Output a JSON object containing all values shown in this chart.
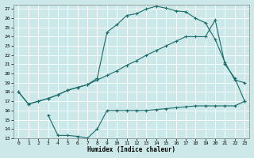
{
  "xlabel": "Humidex (Indice chaleur)",
  "bg_color": "#cde8e8",
  "line_color": "#1a6b6b",
  "grid_color": "#ffffff",
  "xlim": [
    -0.5,
    23.5
  ],
  "ylim": [
    13,
    27.5
  ],
  "yticks": [
    13,
    14,
    15,
    16,
    17,
    18,
    19,
    20,
    21,
    22,
    23,
    24,
    25,
    26,
    27
  ],
  "xticks": [
    0,
    1,
    2,
    3,
    4,
    5,
    6,
    7,
    8,
    9,
    10,
    11,
    12,
    13,
    14,
    15,
    16,
    17,
    18,
    19,
    20,
    21,
    22,
    23
  ],
  "line1_x": [
    0,
    1,
    2,
    3,
    4,
    5,
    6,
    7,
    8,
    9,
    10,
    11,
    12,
    13,
    14,
    15,
    16,
    17,
    18,
    19,
    20,
    21,
    22,
    23
  ],
  "line1_y": [
    18.0,
    16.7,
    17.0,
    17.3,
    17.7,
    18.2,
    18.5,
    18.8,
    19.5,
    24.5,
    25.3,
    26.3,
    26.5,
    27.0,
    27.3,
    27.1,
    26.8,
    26.7,
    26.0,
    25.5,
    23.7,
    21.2,
    19.3,
    19.0
  ],
  "line2_x": [
    0,
    1,
    2,
    3,
    4,
    5,
    6,
    7,
    8,
    9,
    10,
    11,
    12,
    13,
    14,
    15,
    16,
    17,
    18,
    19,
    20,
    21,
    22,
    23
  ],
  "line2_y": [
    18.0,
    16.7,
    17.0,
    17.3,
    17.7,
    18.2,
    18.5,
    18.8,
    19.3,
    19.8,
    20.3,
    20.9,
    21.4,
    22.0,
    22.5,
    23.0,
    23.5,
    24.0,
    24.0,
    24.0,
    25.8,
    21.0,
    19.5,
    17.0
  ],
  "line3_x": [
    3,
    4,
    5,
    6,
    7,
    8,
    9,
    10,
    11,
    12,
    13,
    14,
    15,
    16,
    17,
    18,
    19,
    20,
    21,
    22,
    23
  ],
  "line3_y": [
    15.5,
    13.3,
    13.3,
    13.2,
    13.0,
    14.0,
    16.0,
    16.0,
    16.0,
    16.0,
    16.0,
    16.1,
    16.2,
    16.3,
    16.4,
    16.5,
    16.5,
    16.5,
    16.5,
    16.5,
    17.0
  ]
}
